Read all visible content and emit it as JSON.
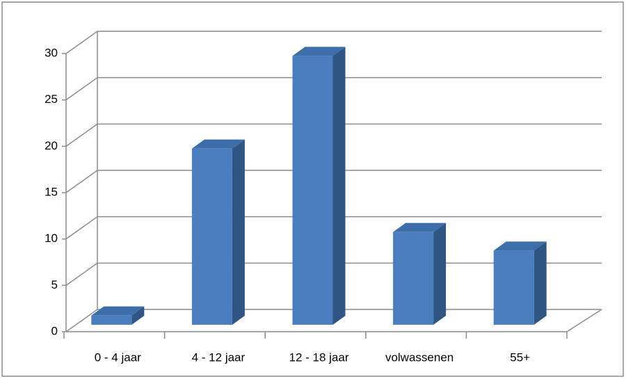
{
  "chart_data": {
    "type": "bar3d",
    "categories": [
      "0 - 4  jaar",
      "4 - 12 jaar",
      "12 - 18 jaar",
      "volwassenen",
      "55+"
    ],
    "values": [
      1,
      19,
      29,
      10,
      8
    ],
    "color": "#4a7ebf",
    "ylim": [
      0,
      30
    ],
    "yticks": [
      0,
      5,
      10,
      15,
      20,
      25,
      30
    ],
    "grid": true
  }
}
